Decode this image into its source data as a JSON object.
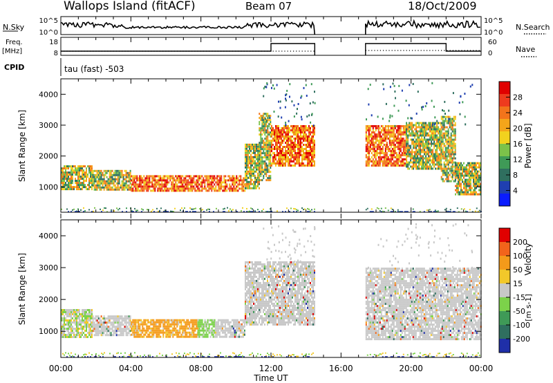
{
  "header": {
    "station": "Wallops Island (fitACF)",
    "beam": "Beam 07",
    "date": "18/Oct/2009"
  },
  "strips": {
    "noise": {
      "left_label": "N.Sky",
      "left_ticks": [
        "10^5",
        "10^0"
      ],
      "right_label": "N.Search",
      "right_ticks": [
        "10^5",
        "10^0"
      ]
    },
    "freq": {
      "left_label_line1": "Freq.",
      "left_label_line2": "[MHz]",
      "left_ticks": [
        "18",
        "8"
      ],
      "right_label": "Nave",
      "right_ticks": [
        "60",
        "0"
      ]
    },
    "cpid": {
      "label": "CPID",
      "value": "tau (fast) -503"
    }
  },
  "chart_data": [
    {
      "type": "heatmap",
      "parameter": "power",
      "ylabel": "Slant Range [km]",
      "ylim": [
        180,
        4500
      ],
      "yticks": [
        1000,
        2000,
        3000,
        4000
      ],
      "xlim_hours": [
        0,
        24
      ],
      "colorbar": {
        "label": "Power [dB]",
        "ticks": [
          "28",
          "24",
          "20",
          "16",
          "12",
          "8",
          "4"
        ],
        "colors": [
          "#0a1cff",
          "#1f3fb0",
          "#2f6f5f",
          "#3f9a57",
          "#7cc24a",
          "#f2d21e",
          "#f4a51a",
          "#f2741b",
          "#ee3b1e",
          "#e00000"
        ]
      },
      "regions": [
        {
          "x": [
            0.0,
            1.8
          ],
          "r": [
            900,
            1700
          ],
          "v": "mid"
        },
        {
          "x": [
            1.8,
            4.0
          ],
          "r": [
            920,
            1550
          ],
          "v": "mid"
        },
        {
          "x": [
            4.0,
            10.5
          ],
          "r": [
            850,
            1380
          ],
          "v": "high"
        },
        {
          "x": [
            10.5,
            11.3
          ],
          "r": [
            950,
            2400
          ],
          "v": "mid"
        },
        {
          "x": [
            11.3,
            12.0
          ],
          "r": [
            1200,
            3400
          ],
          "v": "mid"
        },
        {
          "x": [
            12.0,
            14.5
          ],
          "r": [
            1700,
            3000
          ],
          "v": "high"
        },
        {
          "x": [
            17.4,
            19.7
          ],
          "r": [
            1700,
            3000
          ],
          "v": "high"
        },
        {
          "x": [
            19.7,
            21.7
          ],
          "r": [
            1600,
            3100
          ],
          "v": "mid"
        },
        {
          "x": [
            21.7,
            22.5
          ],
          "r": [
            1200,
            3300
          ],
          "v": "mid"
        },
        {
          "x": [
            22.5,
            24.0
          ],
          "r": [
            750,
            1800
          ],
          "v": "mid"
        }
      ]
    },
    {
      "type": "heatmap",
      "parameter": "velocity",
      "ylabel": "Slant Range [km]",
      "xlabel": "Time UT",
      "ylim": [
        180,
        4500
      ],
      "yticks": [
        1000,
        2000,
        3000,
        4000
      ],
      "xticks": [
        "00:00",
        "04:00",
        "08:00",
        "12:00",
        "16:00",
        "20:00",
        "00:00"
      ],
      "xlim_hours": [
        0,
        24
      ],
      "colorbar": {
        "label": "Velocity",
        "units": "[m s-1]",
        "ticks": [
          "200",
          "100",
          "50",
          "15",
          "-15",
          "-50",
          "-100",
          "-200"
        ],
        "colors": [
          "#1f2fa8",
          "#2f6f5f",
          "#3f9a57",
          "#7cd24a",
          "#c8c8c8",
          "#f2c82a",
          "#f49a1a",
          "#f2641b",
          "#e00000"
        ]
      },
      "regions": [
        {
          "x": [
            0.0,
            1.8
          ],
          "r": [
            800,
            1700
          ],
          "v": "mixed-green"
        },
        {
          "x": [
            1.8,
            4.0
          ],
          "r": [
            900,
            1500
          ],
          "v": "gray"
        },
        {
          "x": [
            4.0,
            7.8
          ],
          "r": [
            850,
            1380
          ],
          "v": "orange"
        },
        {
          "x": [
            7.8,
            8.8
          ],
          "r": [
            850,
            1380
          ],
          "v": "green"
        },
        {
          "x": [
            8.8,
            10.5
          ],
          "r": [
            850,
            1380
          ],
          "v": "gray"
        },
        {
          "x": [
            10.5,
            14.5
          ],
          "r": [
            1200,
            3200
          ],
          "v": "gray"
        },
        {
          "x": [
            17.4,
            24.0
          ],
          "r": [
            750,
            3000
          ],
          "v": "gray"
        }
      ]
    }
  ]
}
